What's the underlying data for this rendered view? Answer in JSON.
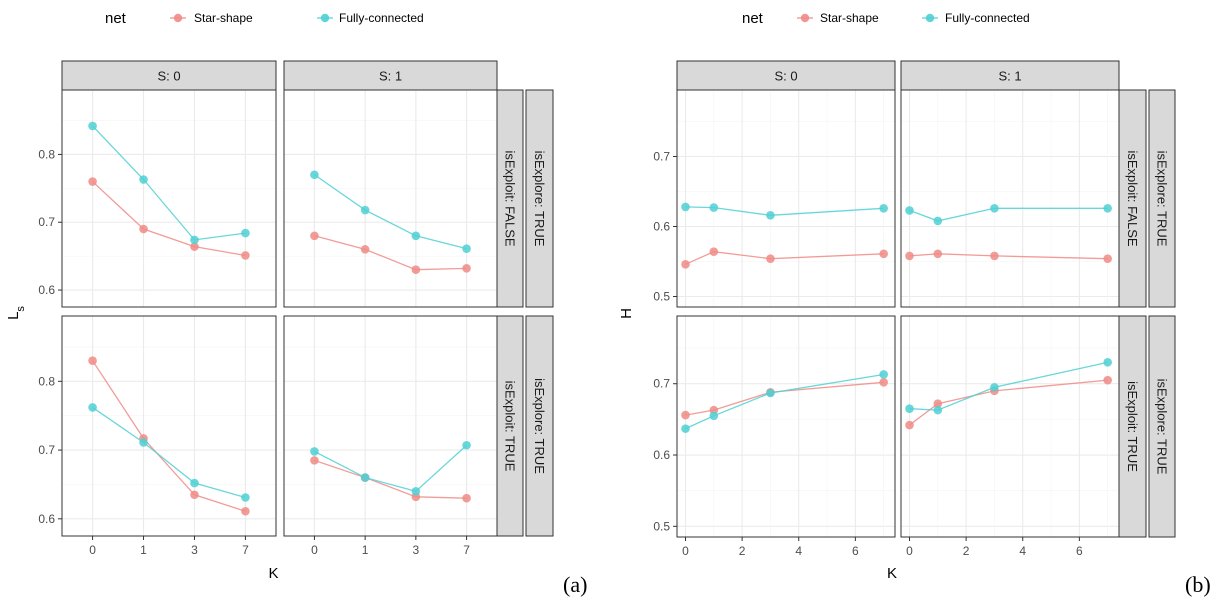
{
  "chart_data": [
    {
      "type": "line",
      "tag": "(a)",
      "xlabel": "K",
      "ylabel": "L",
      "ylabel_sub": "s",
      "x_scale": "categorical",
      "categories": [
        "0",
        "1",
        "3",
        "7"
      ],
      "ylim": [
        0.575,
        0.895
      ],
      "yticks": [
        "0.6",
        "0.7",
        "0.8"
      ],
      "legend": {
        "title": "net",
        "items": [
          "Star-shape",
          "Fully-connected"
        ],
        "position": "top"
      },
      "column_strips": [
        "S: 0",
        "S: 1"
      ],
      "row_strips": [
        "isExploit: FALSE",
        "isExploit: TRUE"
      ],
      "outer_strip": "isExplore: TRUE",
      "grid": true,
      "panels": [
        {
          "S": "S: 0",
          "isExploit": "isExploit: FALSE",
          "series": [
            {
              "name": "Star-shape",
              "values": [
                0.76,
                0.69,
                0.664,
                0.651
              ]
            },
            {
              "name": "Fully-connected",
              "values": [
                0.842,
                0.763,
                0.674,
                0.684
              ]
            }
          ]
        },
        {
          "S": "S: 1",
          "isExploit": "isExploit: FALSE",
          "series": [
            {
              "name": "Star-shape",
              "values": [
                0.68,
                0.66,
                0.63,
                0.632
              ]
            },
            {
              "name": "Fully-connected",
              "values": [
                0.77,
                0.718,
                0.68,
                0.661
              ]
            }
          ]
        },
        {
          "S": "S: 0",
          "isExploit": "isExploit: TRUE",
          "series": [
            {
              "name": "Star-shape",
              "values": [
                0.83,
                0.717,
                0.635,
                0.611
              ]
            },
            {
              "name": "Fully-connected",
              "values": [
                0.762,
                0.711,
                0.652,
                0.631
              ]
            }
          ]
        },
        {
          "S": "S: 1",
          "isExploit": "isExploit: TRUE",
          "series": [
            {
              "name": "Star-shape",
              "values": [
                0.685,
                0.66,
                0.632,
                0.63
              ]
            },
            {
              "name": "Fully-connected",
              "values": [
                0.698,
                0.66,
                0.64,
                0.707
              ]
            }
          ]
        }
      ]
    },
    {
      "type": "line",
      "tag": "(b)",
      "xlabel": "K",
      "ylabel": "H",
      "x_scale": "linear",
      "xlim": [
        -0.3,
        7.4
      ],
      "xticks": [
        0,
        2,
        4,
        6
      ],
      "x_points": [
        0,
        1,
        3,
        7
      ],
      "ylim": [
        0.485,
        0.795
      ],
      "yticks": [
        "0.5",
        "0.6",
        "0.7"
      ],
      "legend": {
        "title": "net",
        "items": [
          "Star-shape",
          "Fully-connected"
        ],
        "position": "top"
      },
      "column_strips": [
        "S: 0",
        "S: 1"
      ],
      "row_strips": [
        "isExploit: FALSE",
        "isExploit: TRUE"
      ],
      "outer_strip": "isExplore: TRUE",
      "grid": true,
      "panels": [
        {
          "S": "S: 0",
          "isExploit": "isExploit: FALSE",
          "series": [
            {
              "name": "Star-shape",
              "values": [
                0.546,
                0.564,
                0.554,
                0.561
              ]
            },
            {
              "name": "Fully-connected",
              "values": [
                0.628,
                0.627,
                0.616,
                0.626
              ]
            }
          ]
        },
        {
          "S": "S: 1",
          "isExploit": "isExploit: FALSE",
          "series": [
            {
              "name": "Star-shape",
              "values": [
                0.558,
                0.561,
                0.558,
                0.554
              ]
            },
            {
              "name": "Fully-connected",
              "values": [
                0.623,
                0.608,
                0.626,
                0.626
              ]
            }
          ]
        },
        {
          "S": "S: 0",
          "isExploit": "isExploit: TRUE",
          "series": [
            {
              "name": "Star-shape",
              "values": [
                0.656,
                0.663,
                0.688,
                0.702
              ]
            },
            {
              "name": "Fully-connected",
              "values": [
                0.637,
                0.655,
                0.687,
                0.713
              ]
            }
          ]
        },
        {
          "S": "S: 1",
          "isExploit": "isExploit: TRUE",
          "series": [
            {
              "name": "Star-shape",
              "values": [
                0.642,
                0.672,
                0.69,
                0.705
              ]
            },
            {
              "name": "Fully-connected",
              "values": [
                0.665,
                0.663,
                0.695,
                0.73
              ]
            }
          ]
        }
      ]
    }
  ],
  "colors": {
    "Star-shape": "#f08b86",
    "Fully-connected": "#4fd0d4"
  }
}
